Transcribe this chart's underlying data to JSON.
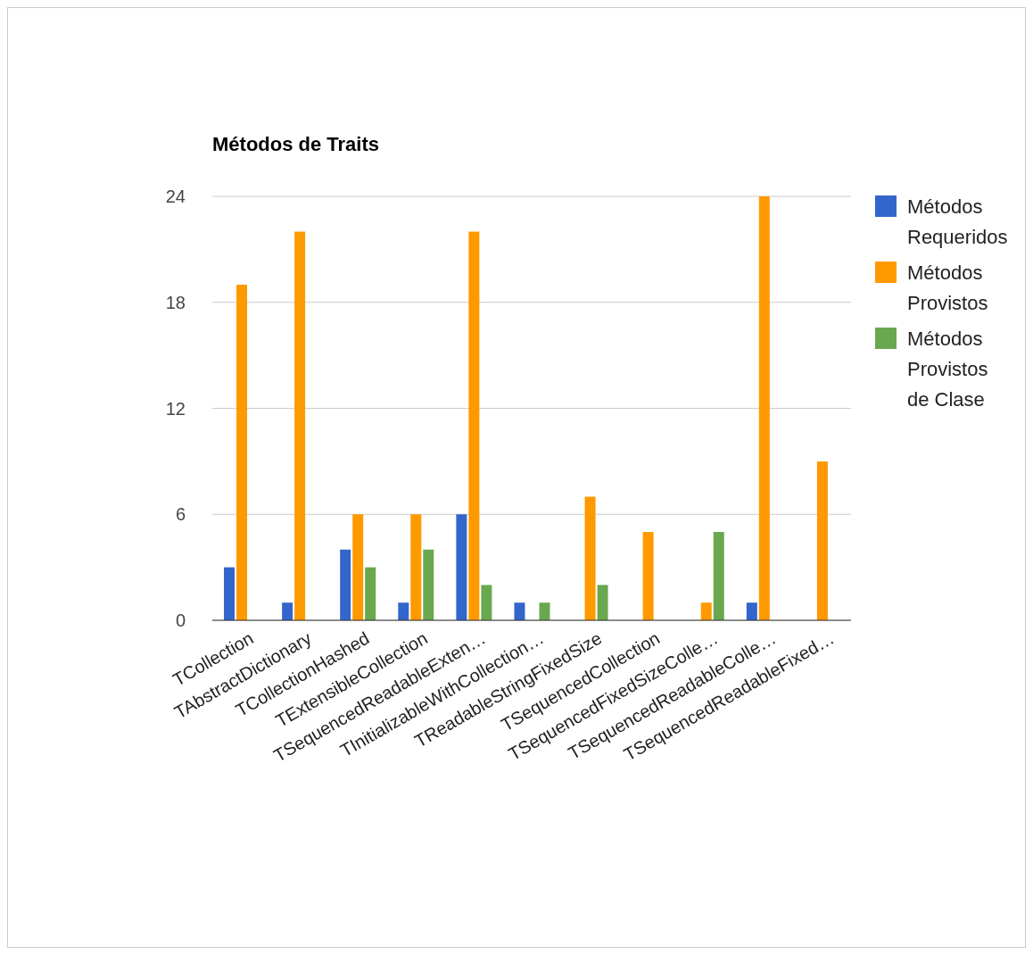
{
  "chart_data": {
    "type": "bar",
    "title": "Métodos de Traits",
    "categories": [
      "TCollection",
      "TAbstractDictionary",
      "TCollectionHashed",
      "TExtensibleCollection",
      "TSequencedReadableExten…",
      "TInitializableWithCollection…",
      "TReadableStringFixedSize",
      "TSequencedCollection",
      "TSequencedFixedSizeColle…",
      "TSequencedReadableColle…",
      "TSequencedReadableFixed…"
    ],
    "series": [
      {
        "name": "Métodos Requeridos",
        "color": "#3366cc",
        "values": [
          3,
          1,
          4,
          1,
          6,
          1,
          0,
          0,
          0,
          1,
          0
        ]
      },
      {
        "name": "Métodos Provistos",
        "color": "#ff9900",
        "values": [
          19,
          22,
          6,
          6,
          22,
          0,
          7,
          5,
          1,
          24,
          9
        ]
      },
      {
        "name": "Métodos Provistos de Clase",
        "color": "#6aa84f",
        "values": [
          0,
          0,
          3,
          4,
          2,
          1,
          2,
          0,
          5,
          0,
          0
        ]
      }
    ],
    "ylim": [
      0,
      24
    ],
    "yticks": [
      0,
      6,
      12,
      18,
      24
    ],
    "grid": "y",
    "legend": "right"
  }
}
